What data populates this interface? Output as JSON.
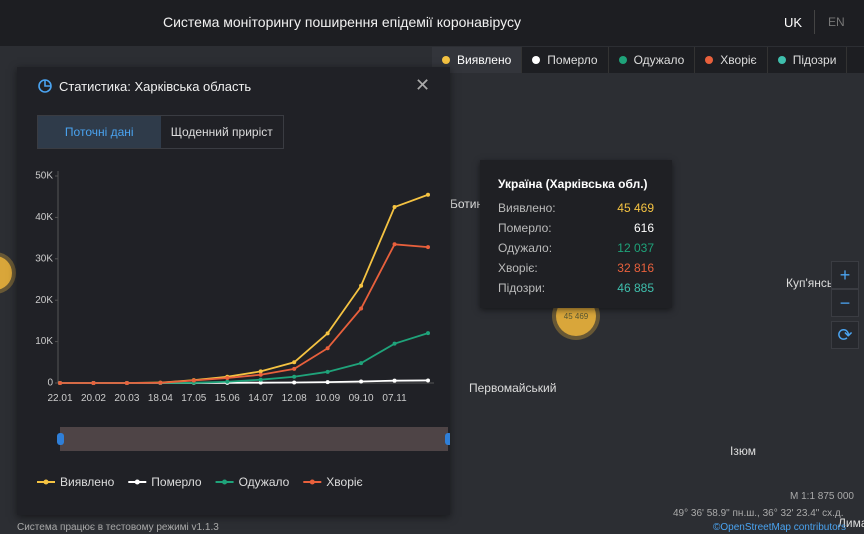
{
  "header": {
    "title": "Система моніторингу поширення епідемії коронавірусу",
    "languages": [
      "UK",
      "EN"
    ]
  },
  "filters": [
    {
      "label": "Виявлено",
      "color": "#f5c342",
      "active": true
    },
    {
      "label": "Померло",
      "color": "#ffffff",
      "active": false
    },
    {
      "label": "Одужало",
      "color": "#1fa37a",
      "active": false
    },
    {
      "label": "Хворіє",
      "color": "#e8603c",
      "active": false
    },
    {
      "label": "Підозри",
      "color": "#3fbfad",
      "active": false
    }
  ],
  "panel": {
    "title": "Статистика: Харківська область",
    "tabs": [
      "Поточні дані",
      "Щоденний приріст"
    ]
  },
  "chart_data": {
    "type": "line",
    "categories": [
      "22.01",
      "20.02",
      "20.03",
      "18.04",
      "17.05",
      "15.06",
      "14.07",
      "12.08",
      "10.09",
      "09.10",
      "07.11",
      null
    ],
    "series": [
      {
        "name": "Виявлено",
        "color": "#f5c342",
        "values": [
          0,
          0,
          0,
          100,
          700,
          1500,
          2800,
          5000,
          12000,
          23500,
          42500,
          45469
        ]
      },
      {
        "name": "Померло",
        "color": "#ffffff",
        "values": [
          0,
          0,
          0,
          0,
          20,
          40,
          80,
          120,
          220,
          360,
          560,
          616
        ]
      },
      {
        "name": "Одужало",
        "color": "#1fa37a",
        "values": [
          0,
          0,
          0,
          0,
          50,
          300,
          800,
          1500,
          2700,
          4800,
          9500,
          12037
        ]
      },
      {
        "name": "Хворіє",
        "color": "#e8603c",
        "values": [
          0,
          0,
          0,
          50,
          600,
          1200,
          2000,
          3400,
          8400,
          18000,
          33500,
          32816
        ]
      }
    ],
    "ylim": [
      0,
      50000
    ],
    "yticks": [
      0,
      {
        "value": 10000,
        "label": "10K"
      },
      {
        "value": 20000,
        "label": "20K"
      },
      {
        "value": 30000,
        "label": "30K"
      },
      {
        "value": 40000,
        "label": "40K"
      },
      {
        "value": 50000,
        "label": "50K"
      }
    ],
    "grid": false
  },
  "tooltip": {
    "title": "Україна (Харківська обл.)",
    "rows": [
      [
        "Виявлено:",
        "45 469"
      ],
      [
        "Померло:",
        "616"
      ],
      [
        "Одужало:",
        "12 037"
      ],
      [
        "Хворіє:",
        "32 816"
      ],
      [
        "Підозри:",
        "46 885"
      ]
    ]
  },
  "map": {
    "labels": [
      "Ботин",
      "Первомайський",
      "Ізюм",
      "Куп'янськ",
      "Лиман"
    ],
    "cluster": "45 469",
    "scale": "M 1:1 875 000",
    "coordinates": "49° 36' 58.9\" пн.ш., 36° 32' 23.4\" сх.д.",
    "attribution": "©OpenStreetMap contributors"
  },
  "footer": "Система працює в тестовому режимі v1.1.3"
}
